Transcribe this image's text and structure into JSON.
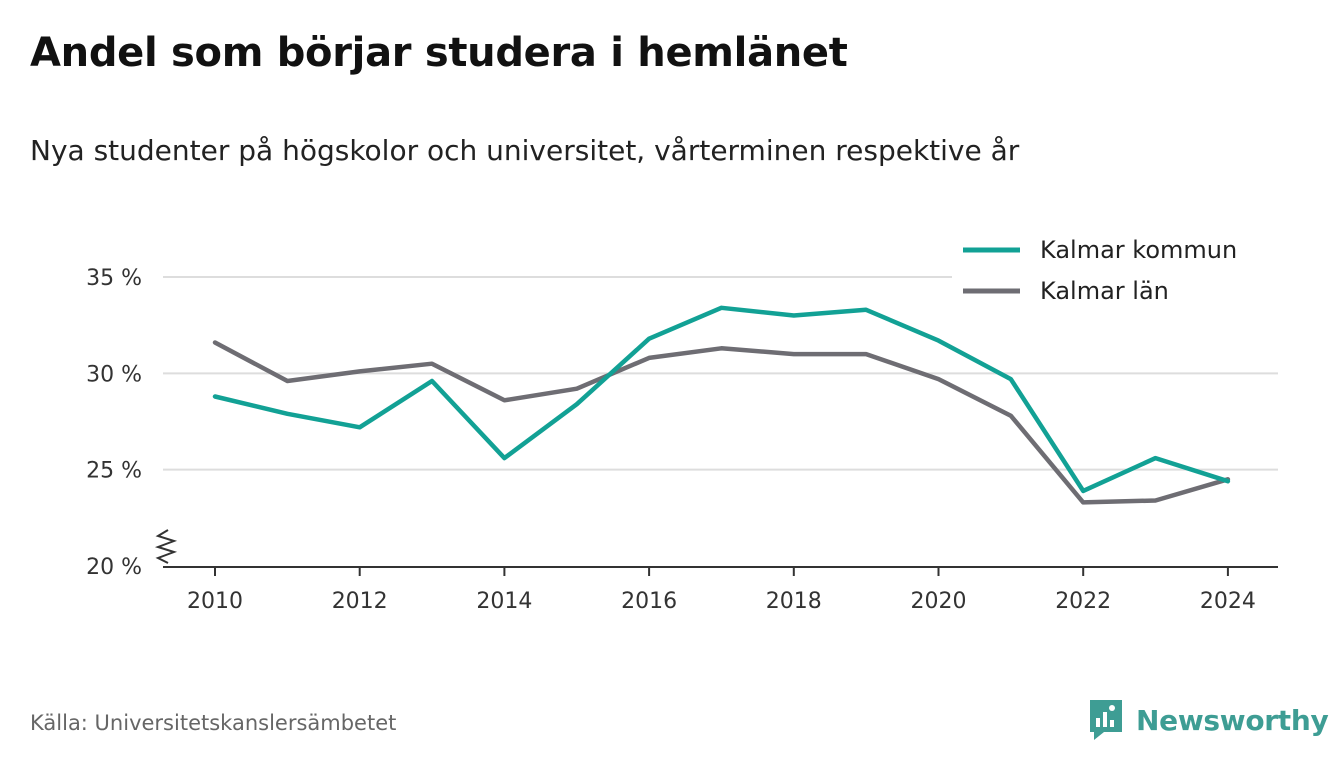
{
  "title": "Andel som börjar studera i hemlänet",
  "subtitle": "Nya studenter på högskolor och universitet, vårterminen respektive år",
  "source": "Källa: Universitetskanslersämbetet",
  "brand": "Newsworthy",
  "colors": {
    "kommun": "#12a195",
    "lan": "#6e6d73",
    "grid": "#dddddd",
    "axis": "#333333",
    "brand": "#3e9d94"
  },
  "chart_data": {
    "type": "line",
    "x": [
      2010,
      2011,
      2012,
      2013,
      2014,
      2015,
      2016,
      2017,
      2018,
      2019,
      2020,
      2021,
      2022,
      2023,
      2024
    ],
    "xticks": [
      "2010",
      "2012",
      "2014",
      "2016",
      "2018",
      "2020",
      "2022",
      "2024"
    ],
    "yticks": [
      "20 %",
      "25 %",
      "30 %",
      "35 %"
    ],
    "ylim": [
      20,
      35
    ],
    "y_axis_break": true,
    "grid": true,
    "legend_position": "top-right",
    "series": [
      {
        "name": "Kalmar kommun",
        "color_key": "kommun",
        "values": [
          28.8,
          27.9,
          27.2,
          29.6,
          25.6,
          28.4,
          31.8,
          33.4,
          33.0,
          33.3,
          31.7,
          29.7,
          23.9,
          25.6,
          24.4
        ]
      },
      {
        "name": "Kalmar län",
        "color_key": "lan",
        "values": [
          31.6,
          29.6,
          30.1,
          30.5,
          28.6,
          29.2,
          30.8,
          31.3,
          31.0,
          31.0,
          29.7,
          27.8,
          23.3,
          23.4,
          24.5
        ]
      }
    ]
  }
}
